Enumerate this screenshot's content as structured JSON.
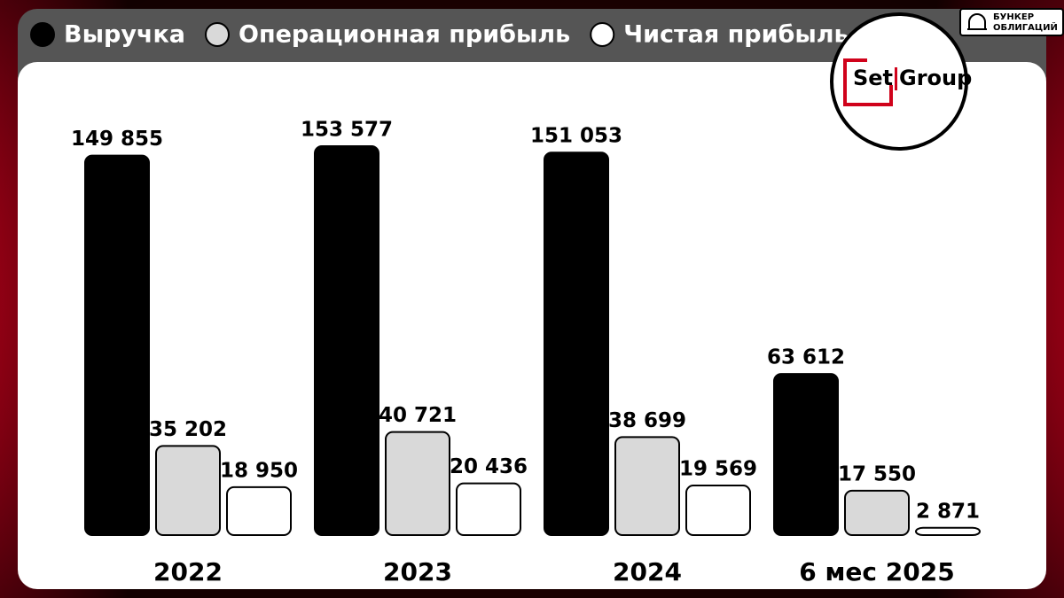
{
  "chart_data": {
    "type": "bar",
    "categories": [
      "2022",
      "2023",
      "2024",
      "6 мес 2025"
    ],
    "series": [
      {
        "name": "Выручка",
        "color": "#000000",
        "values": [
          149855,
          153577,
          151053,
          63612
        ],
        "value_labels": [
          "149 855",
          "153 577",
          "151 053",
          "63 612"
        ]
      },
      {
        "name": "Операционная прибыль",
        "color": "#d9d9d9",
        "values": [
          35202,
          40721,
          38699,
          17550
        ],
        "value_labels": [
          "35 202",
          "40 721",
          "38 699",
          "17 550"
        ]
      },
      {
        "name": "Чистая прибыль",
        "color": "#ffffff",
        "values": [
          18950,
          20436,
          19569,
          2871
        ],
        "value_labels": [
          "18 950",
          "20 436",
          "19 569",
          "2 871"
        ]
      }
    ]
  },
  "logo": {
    "left": "Set",
    "right": "Group"
  },
  "badge": [
    "БУНКЕР",
    "ОБЛИГАЦИЙ"
  ]
}
